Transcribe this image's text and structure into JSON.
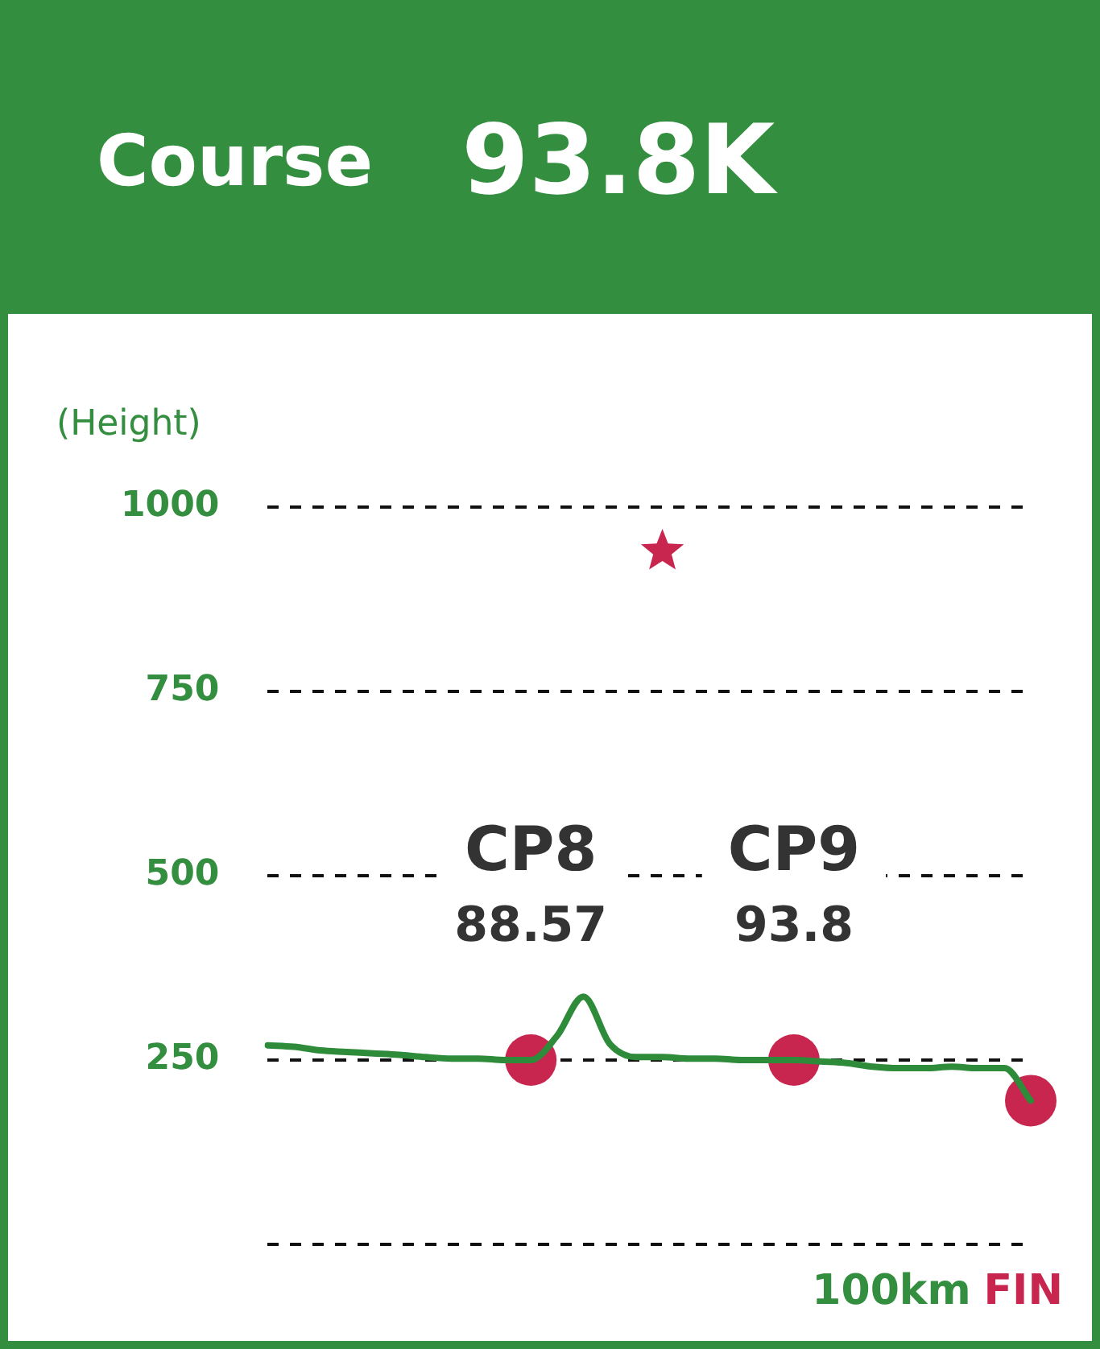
{
  "chart_data": {
    "type": "line",
    "title": "Course",
    "subtitle": "93.8K",
    "ylabel": "(Height)",
    "ylim": [
      0,
      1000
    ],
    "yticks": [
      {
        "value": 0,
        "label": null
      },
      250,
      500,
      750,
      1000
    ],
    "grid": "y",
    "tick_labels": "y",
    "categories": [
      null,
      null,
      null,
      null,
      null,
      null,
      null,
      null,
      null,
      null,
      null,
      null,
      null,
      null,
      null,
      null,
      null,
      null,
      null,
      null,
      null,
      null,
      null,
      null,
      null,
      null,
      null,
      null,
      null,
      null
    ],
    "series": [
      {
        "color": "#2e8b3a",
        "values": [
          270,
          268,
          263,
          261,
          259,
          257,
          254,
          252,
          252,
          250,
          250,
          283,
          336,
          272,
          254,
          254,
          252,
          252,
          250,
          250,
          250,
          248,
          246,
          241,
          239,
          239,
          241,
          239,
          239,
          195
        ]
      },
      {
        "type": "scatter",
        "marker": "circle",
        "color": "#c8254f",
        "values": [
          null,
          null,
          null,
          null,
          null,
          null,
          null,
          null,
          null,
          null,
          250,
          null,
          null,
          null,
          null,
          null,
          null,
          null,
          null,
          null,
          250,
          null,
          null,
          null,
          null,
          null,
          null,
          null,
          null,
          195
        ]
      },
      {
        "type": "scatter",
        "marker": "star",
        "color": "#c8254f",
        "values": [
          null,
          null,
          null,
          null,
          null,
          null,
          null,
          null,
          null,
          null,
          null,
          null,
          null,
          null,
          null,
          940,
          null,
          null,
          null,
          null,
          null,
          null,
          null,
          null,
          null,
          null,
          null,
          null,
          null,
          null
        ]
      }
    ],
    "annotations": [
      "CP8",
      "88.57",
      "CP9",
      "93.8",
      "100km",
      "FIN"
    ]
  }
}
